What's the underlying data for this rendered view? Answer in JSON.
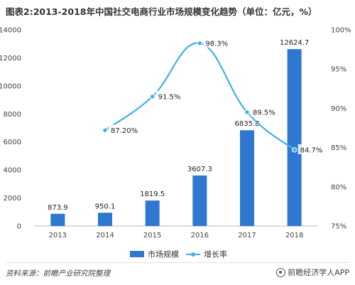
{
  "title": "图表2:2013-2018年中国社交电商行业市场规模变化趋势（单位：亿元，%）",
  "footer": {
    "source": "资料来源：前瞻产业研究院整理",
    "brand": "前瞻经济学人APP"
  },
  "colors": {
    "bar": "#2e78d2",
    "line": "#41b0e8"
  },
  "chart_data": {
    "type": "bar+line",
    "categories": [
      "2013",
      "2014",
      "2015",
      "2016",
      "2017",
      "2018"
    ],
    "series": [
      {
        "name": "市场规模",
        "type": "bar",
        "axis": "left",
        "values": [
          873.9,
          950.1,
          1819.5,
          3607.3,
          6835.8,
          12624.7
        ],
        "labels": [
          "873.9",
          "950.1",
          "1819.5",
          "3607.3",
          "6835.8",
          "12624.7"
        ]
      },
      {
        "name": "增长率",
        "type": "line",
        "axis": "right",
        "values": [
          null,
          87.2,
          91.5,
          98.3,
          89.5,
          84.7
        ],
        "labels": [
          "",
          "87.20%",
          "91.5%",
          "98.3%",
          "89.5%",
          "84.7%"
        ]
      }
    ],
    "y_left": {
      "min": 0,
      "max": 14000,
      "ticks": [
        "0",
        "2000",
        "4000",
        "6000",
        "8000",
        "10000",
        "12000",
        "14000"
      ]
    },
    "y_right": {
      "min": 75,
      "max": 100,
      "ticks": [
        "75%",
        "80%",
        "85%",
        "90%",
        "95%",
        "100%"
      ]
    },
    "legend": {
      "position": "bottom"
    },
    "grid": false
  }
}
